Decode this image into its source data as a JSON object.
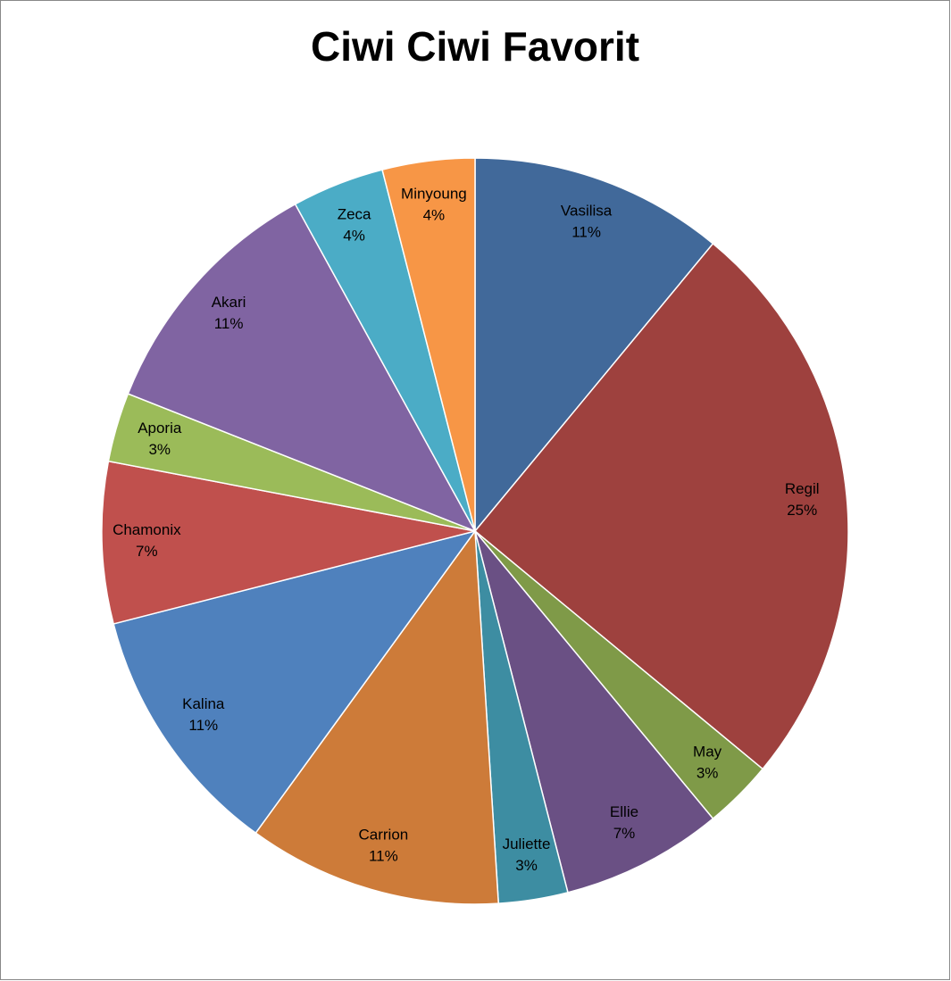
{
  "chart_data": {
    "type": "pie",
    "title": "Ciwi Ciwi Favorit",
    "categories": [
      "Vasilisa",
      "Regil",
      "May",
      "Ellie",
      "Juliette",
      "Carrion",
      "Kalina",
      "Chamonix",
      "Aporia",
      "Akari",
      "Zeca",
      "Minyoung"
    ],
    "values": [
      11,
      25,
      3,
      7,
      3,
      11,
      11,
      7,
      3,
      11,
      4,
      4
    ],
    "value_labels": [
      "11%",
      "25%",
      "3%",
      "7%",
      "3%",
      "11%",
      "11%",
      "7%",
      "3%",
      "11%",
      "4%",
      "4%"
    ],
    "colors": [
      "#41699a",
      "#9e413e",
      "#7f9a48",
      "#6a5084",
      "#3d8da2",
      "#cd7b39",
      "#4f81bd",
      "#c0504d",
      "#9bbb59",
      "#8064a2",
      "#4bacc6",
      "#f79646"
    ]
  }
}
